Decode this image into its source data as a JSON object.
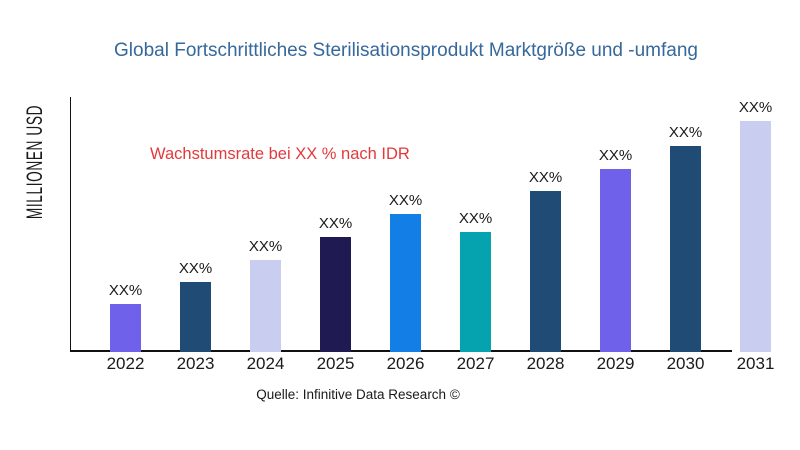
{
  "colors": {
    "title": "#36689B",
    "annotation_red": "#E23A3C",
    "axis": "#111111",
    "text": "#1a1a1a",
    "bar_purple": "#6F61EA",
    "bar_dark_steel_blue": "#1F4B74",
    "bar_lavender": "#C9CDEF",
    "bar_navy": "#201A53",
    "bar_bright_blue": "#137FE6",
    "bar_teal": "#05A2B0"
  },
  "chart_data": {
    "type": "bar",
    "title": "Global Fortschrittliches Sterilisationsprodukt Marktgröße und -umfang",
    "ylabel": "MILLIONEN USD",
    "xlabel": "",
    "annotation": "Wachstumsrate bei XX % nach IDR",
    "source": "Quelle: Infinitive Data Research ©",
    "categories": [
      "2022",
      "2023",
      "2024",
      "2025",
      "2026",
      "2027",
      "2028",
      "2029",
      "2030",
      "2031"
    ],
    "values": [
      48,
      70,
      92,
      115,
      138,
      120,
      161,
      183,
      206,
      231
    ],
    "values_note": "no numeric y-axis shown; values are relative bar heights in px read from the image",
    "value_labels": [
      "XX%",
      "XX%",
      "XX%",
      "XX%",
      "XX%",
      "XX%",
      "XX%",
      "XX%",
      "XX%",
      "XX%"
    ],
    "bar_colors": [
      "#6F61EA",
      "#1F4B74",
      "#C9CDEF",
      "#201A53",
      "#137FE6",
      "#05A2B0",
      "#1F4B74",
      "#6F61EA",
      "#1F4B74",
      "#C9CDEF"
    ],
    "y_axis_tick_labels": "none",
    "grid": "off",
    "legend": "none"
  }
}
